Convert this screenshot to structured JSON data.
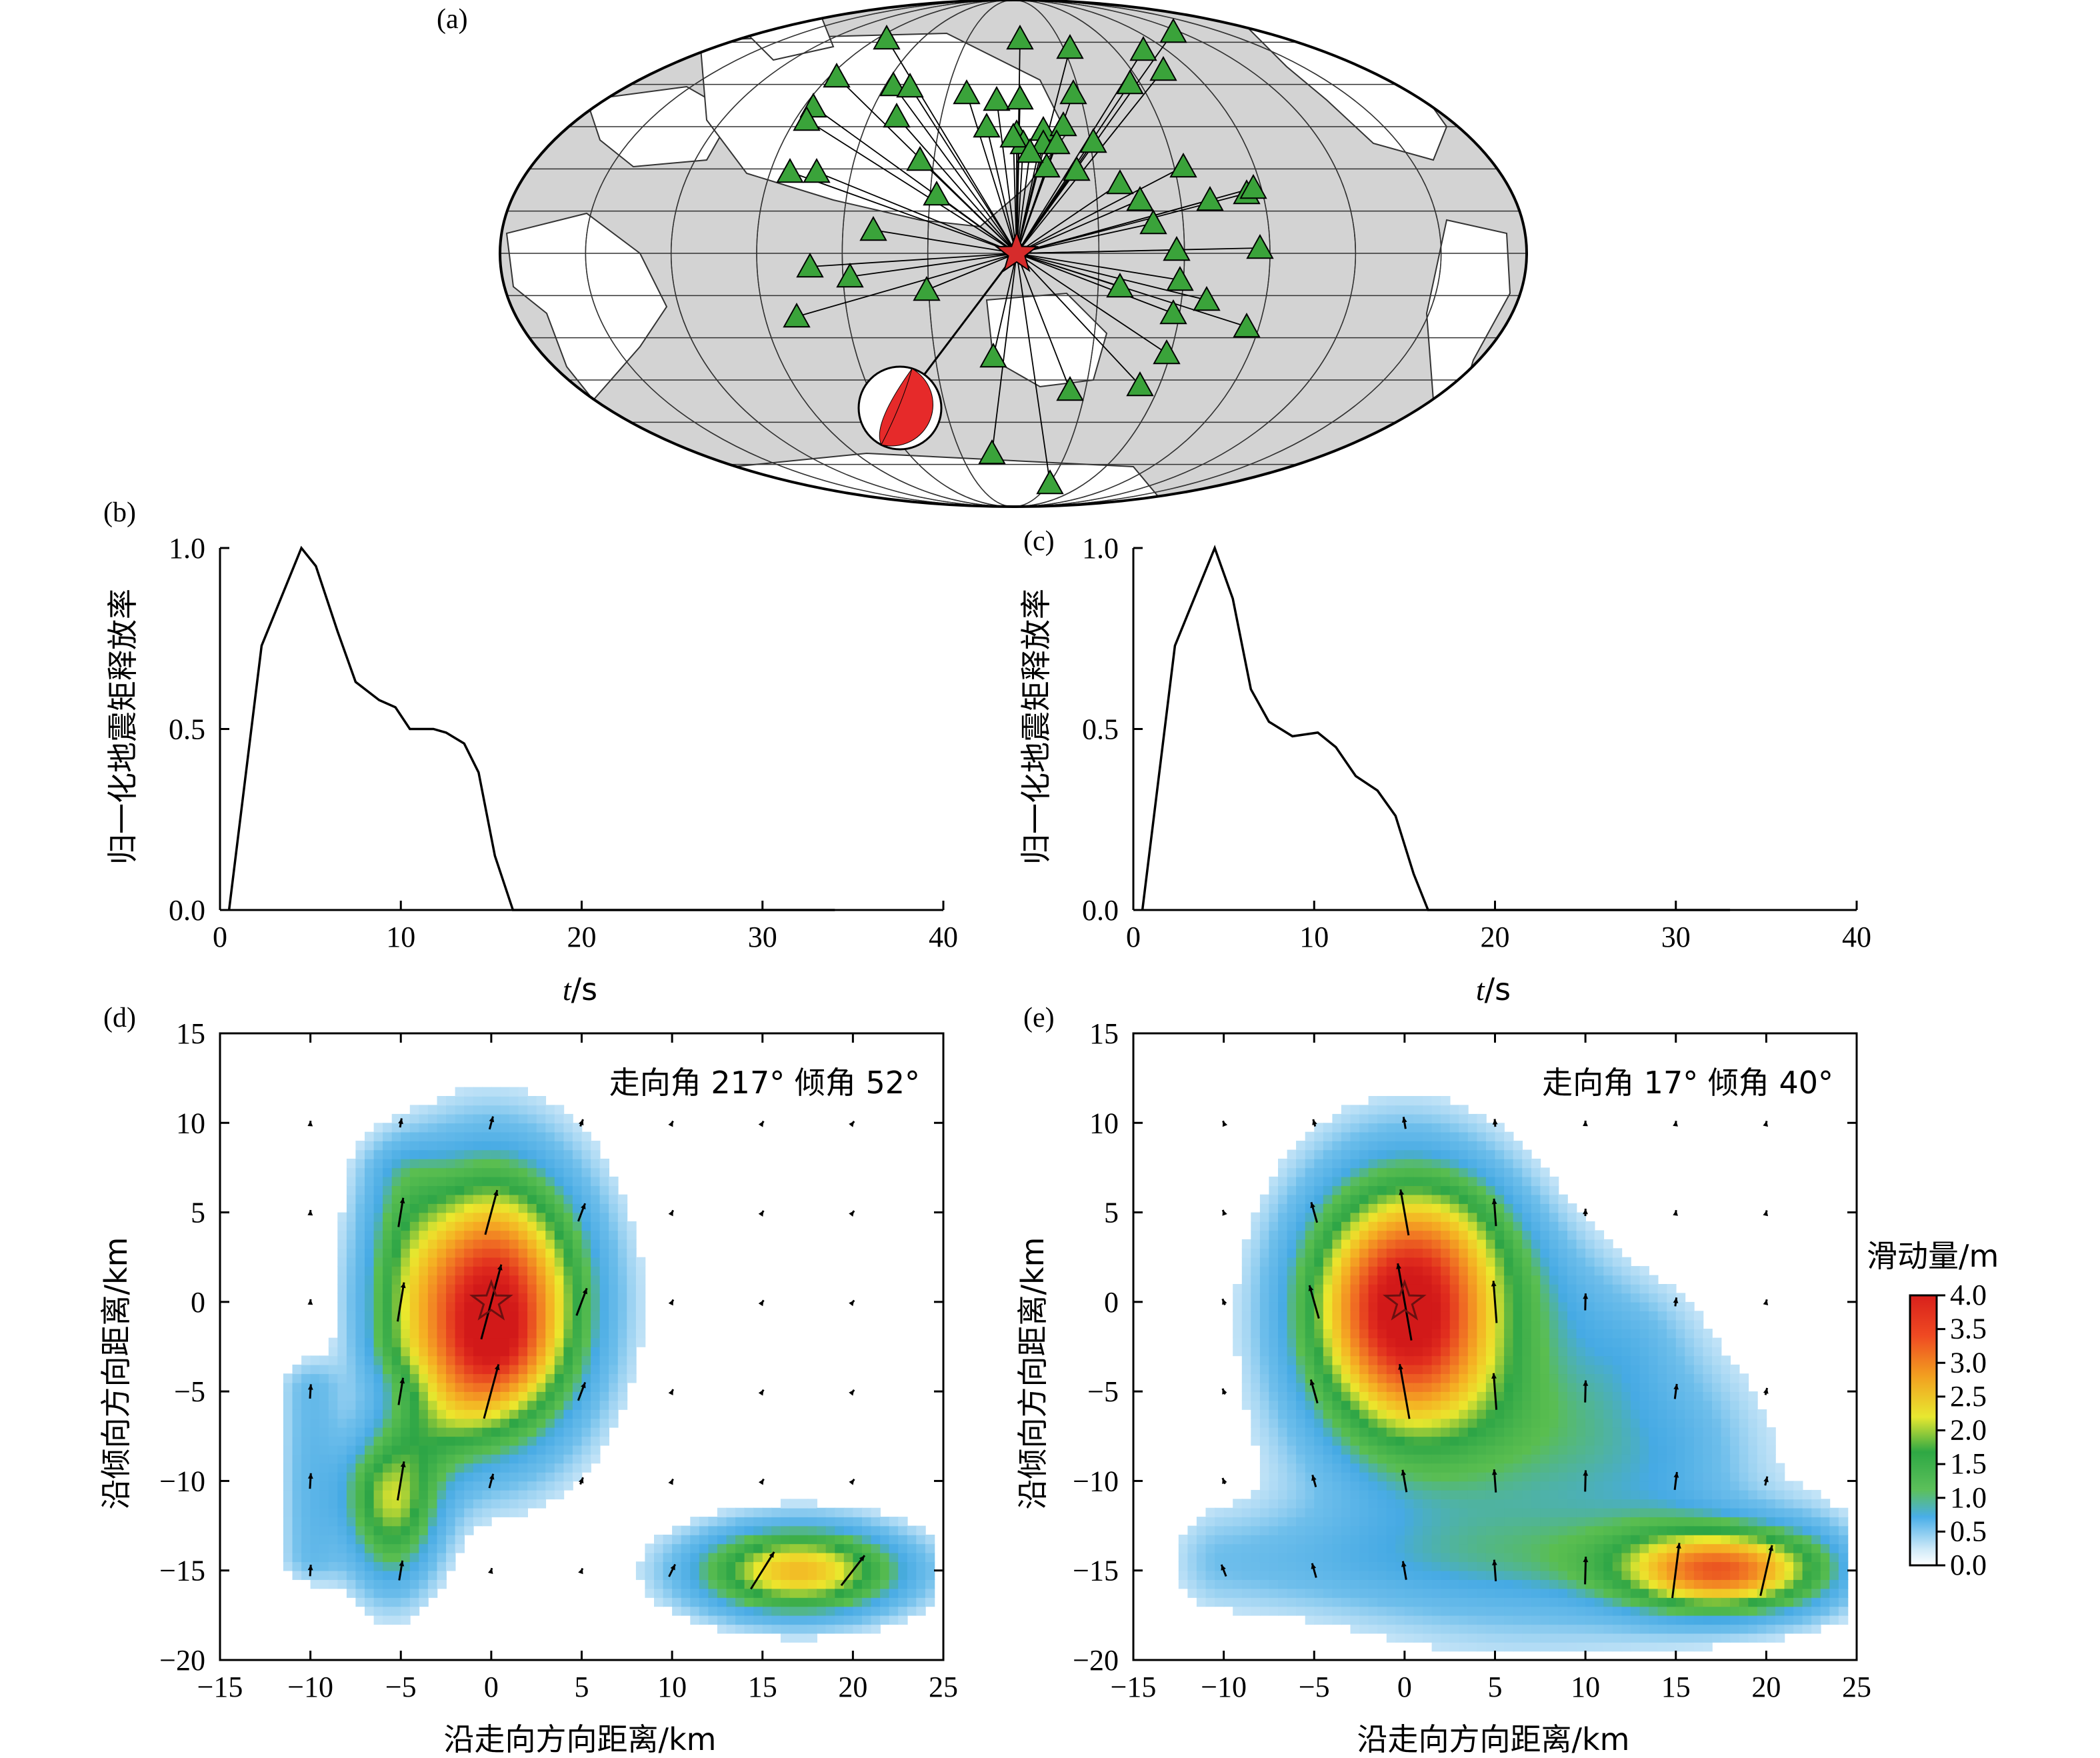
{
  "panel_a": {
    "label": "(a)",
    "colors": {
      "land": "#ffffff",
      "ocean": "#d3d3d3",
      "station": "#3aa33a",
      "epicenter": "#d62b2b",
      "beachball_red": "#e62a2a"
    },
    "icons": [
      "station-triangle-icon",
      "epicenter-star-icon",
      "focal-mechanism-beachball-icon"
    ]
  },
  "chart_data": [
    {
      "id": "b",
      "type": "line",
      "panel_label": "(b)",
      "ylabel": "归一化地震矩释放率",
      "xlabel_var": "t",
      "xlabel_unit": "/s",
      "xlim": [
        0,
        40
      ],
      "ylim": [
        0,
        1
      ],
      "xticks": [
        "0",
        "10",
        "20",
        "30",
        "40"
      ],
      "yticks": [
        "0.0",
        "0.5",
        "1.0"
      ],
      "x": [
        0.5,
        2.3,
        4.5,
        5.3,
        6.5,
        7.5,
        8.8,
        9.7,
        10.5,
        11.8,
        12.5,
        13.5,
        14.3,
        15.2,
        16.2,
        34
      ],
      "y": [
        0,
        0.73,
        1.0,
        0.95,
        0.77,
        0.63,
        0.58,
        0.56,
        0.5,
        0.5,
        0.49,
        0.46,
        0.38,
        0.15,
        0,
        0
      ]
    },
    {
      "id": "c",
      "type": "line",
      "panel_label": "(c)",
      "ylabel": "归一化地震矩释放率",
      "xlabel_var": "t",
      "xlabel_unit": "/s",
      "xlim": [
        0,
        40
      ],
      "ylim": [
        0,
        1
      ],
      "xticks": [
        "0",
        "10",
        "20",
        "30",
        "40"
      ],
      "yticks": [
        "0.0",
        "0.5",
        "1.0"
      ],
      "x": [
        0.5,
        2.3,
        4.5,
        5.5,
        6.5,
        7.5,
        8.8,
        10.2,
        11.2,
        12.3,
        13.5,
        14.5,
        15.5,
        16.3,
        33
      ],
      "y": [
        0,
        0.73,
        1.0,
        0.86,
        0.61,
        0.52,
        0.48,
        0.49,
        0.45,
        0.37,
        0.33,
        0.26,
        0.1,
        0,
        0
      ]
    },
    {
      "id": "d",
      "type": "heatmap",
      "panel_label": "(d)",
      "annotation": "走向角 217°  倾角 52°",
      "xlabel": "沿走向方向距离/km",
      "ylabel": "沿倾向方向距离/km",
      "xlim": [
        -15,
        25
      ],
      "ylim": [
        -20,
        15
      ],
      "xticks": [
        "−15",
        "−10",
        "−5",
        "0",
        "5",
        "10",
        "15",
        "20",
        "25"
      ],
      "yticks": [
        "−20",
        "−15",
        "−10",
        "−5",
        "0",
        "5",
        "10",
        "15"
      ],
      "hypocenter": [
        0,
        0
      ],
      "slip_patches_m": [
        {
          "x": 0,
          "y": 0,
          "peak": 4.0,
          "sx": 3.5,
          "sy": 5.0
        },
        {
          "x": -5.5,
          "y": -12,
          "peak": 1.5,
          "sx": 1.8,
          "sy": 3.0
        },
        {
          "x": 17,
          "y": -15,
          "peak": 2.6,
          "sx": 4.0,
          "sy": 1.7
        }
      ]
    },
    {
      "id": "e",
      "type": "heatmap",
      "panel_label": "(e)",
      "annotation": "走向角 17°  倾角 40°",
      "xlabel": "沿走向方向距离/km",
      "ylabel": "沿倾向方向距离/km",
      "xlim": [
        -15,
        25
      ],
      "ylim": [
        -20,
        15
      ],
      "xticks": [
        "−15",
        "−10",
        "−5",
        "0",
        "5",
        "10",
        "15",
        "20",
        "25"
      ],
      "yticks": [
        "−20",
        "−15",
        "−10",
        "−5",
        "0",
        "5",
        "10",
        "15"
      ],
      "hypocenter": [
        0,
        0
      ],
      "slip_patches_m": [
        {
          "x": 0,
          "y": 0,
          "peak": 4.0,
          "sx": 3.8,
          "sy": 4.8
        },
        {
          "x": 17.5,
          "y": -15,
          "peak": 2.7,
          "sx": 3.8,
          "sy": 1.6
        },
        {
          "x": 7,
          "y": -10,
          "peak": 0.8,
          "sx": 8,
          "sy": 6
        }
      ]
    }
  ],
  "colorbar": {
    "title": "滑动量/m",
    "ticks": [
      "4.0",
      "3.5",
      "3.0",
      "2.5",
      "2.0",
      "1.5",
      "1.0",
      "0.5",
      "0.0"
    ],
    "range": [
      0,
      4
    ],
    "colors": [
      "#ffffff",
      "#3aa0e8",
      "#a8d8f0",
      "#3ab54a",
      "#f2e62a",
      "#f29a1f",
      "#e3261f"
    ]
  }
}
